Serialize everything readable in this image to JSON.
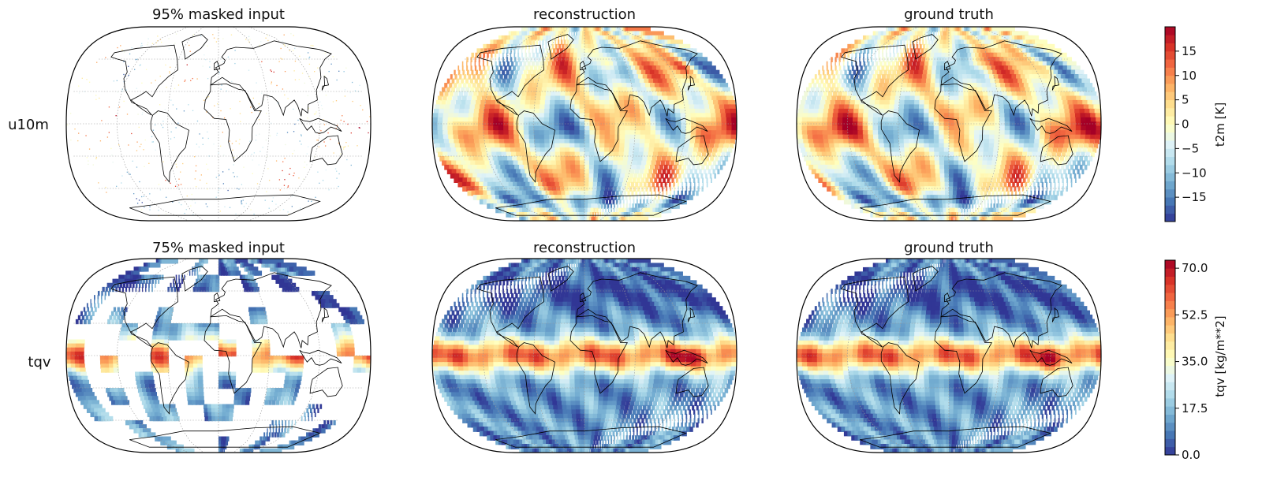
{
  "chart_data": [
    {
      "type": "heatmap",
      "row_label": "u10m",
      "colorbar": {
        "label": "t2m [K]",
        "vmin": -20,
        "vmax": 20,
        "ticks": [
          -15,
          -10,
          -5,
          0,
          5,
          10,
          15
        ],
        "tick_labels": [
          "−15",
          "−10",
          "−5",
          "0",
          "5",
          "10",
          "15"
        ],
        "cmap": "RdYlBu_r"
      },
      "panels": [
        {
          "title": "95% masked input",
          "kind": "masked",
          "mask_fraction": 0.95
        },
        {
          "title": "reconstruction",
          "kind": "field"
        },
        {
          "title": "ground truth",
          "kind": "field"
        }
      ]
    },
    {
      "type": "heatmap",
      "row_label": "tqv",
      "colorbar": {
        "label": "tqv [kg/m**2]",
        "vmin": 0,
        "vmax": 73,
        "ticks": [
          0.0,
          17.5,
          35.0,
          52.5,
          70.0
        ],
        "tick_labels": [
          "0.0",
          "17.5",
          "35.0",
          "52.5",
          "70.0"
        ],
        "cmap": "RdYlBu_r"
      },
      "panels": [
        {
          "title": "75% masked input",
          "kind": "masked",
          "mask_fraction": 0.75
        },
        {
          "title": "reconstruction",
          "kind": "field"
        },
        {
          "title": "ground truth",
          "kind": "field"
        }
      ]
    }
  ],
  "colors": {
    "cmap_stops": [
      "#313695",
      "#4575b4",
      "#74add1",
      "#abd9e9",
      "#e0f3f8",
      "#ffffbf",
      "#fee090",
      "#fdae61",
      "#f46d43",
      "#d73027",
      "#a50026"
    ],
    "coast": "#000000",
    "grid": "#999999",
    "frame": "#000000"
  }
}
